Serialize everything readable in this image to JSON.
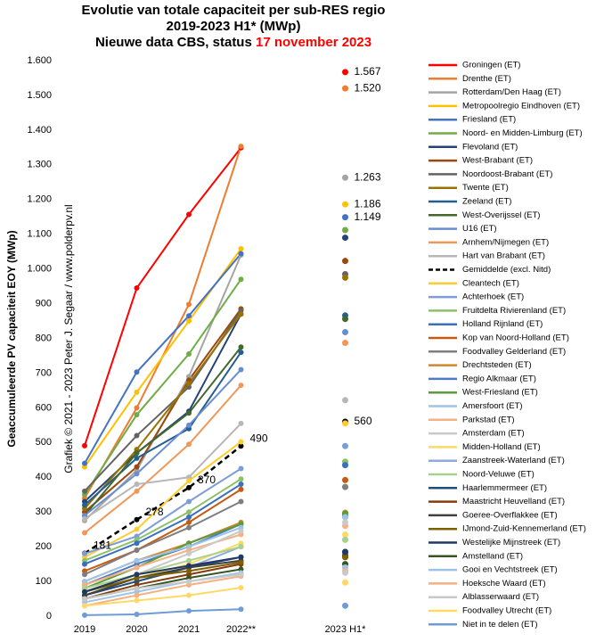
{
  "chart_data": {
    "type": "line",
    "title": "Evolutie van totale capaciteit  per sub-RES regio",
    "subtitle": "2019-2023 H1* (MWp)",
    "subtitle2": "Nieuwe data CBS, status ",
    "subtitle2_highlight": "17 november 2023",
    "highlight_color": "#ff0000",
    "y_label": "Geaccumuleerde PV capaciteit EOY (MWp)",
    "watermark": "Grafiek © 2021 - 2023 Peter J. Segaar / www.polderpv.nl",
    "categories": [
      "2019",
      "2020",
      "2021",
      "2022**",
      null,
      "2023 H1*"
    ],
    "ylim": [
      0,
      1600
    ],
    "yticks": [
      0,
      100,
      200,
      300,
      400,
      500,
      600,
      700,
      800,
      900,
      {
        "value": 1000,
        "label": "1.000"
      },
      {
        "value": 1100,
        "label": "1.100"
      },
      {
        "value": 1200,
        "label": "1.200"
      },
      {
        "value": 1300,
        "label": "1.300"
      },
      {
        "value": 1400,
        "label": "1.400"
      },
      {
        "value": 1500,
        "label": "1.500"
      },
      {
        "value": 1600,
        "label": "1.600"
      }
    ],
    "grid": false,
    "legend": "right",
    "series": [
      {
        "name": "Groningen (ET)",
        "color": "#ff0000",
        "values": [
          491,
          945,
          1157,
          1349,
          null,
          1567
        ],
        "value_labels": [
          null,
          null,
          null,
          null,
          null,
          "1.567"
        ]
      },
      {
        "name": "Drenthe (ET)",
        "color": "#ed7d31",
        "values": [
          340,
          600,
          898,
          1353,
          null,
          1520
        ],
        "value_labels": [
          null,
          null,
          null,
          null,
          null,
          "1.520"
        ]
      },
      {
        "name": "Rotterdam/Den Haag (ET)",
        "color": "#a5a5a5",
        "values": [
          275,
          420,
          690,
          1040,
          null,
          1263
        ],
        "value_labels": [
          null,
          null,
          null,
          null,
          null,
          "1.263"
        ]
      },
      {
        "name": "Metropoolregio Eindhoven (ET)",
        "color": "#ffc000",
        "values": [
          430,
          645,
          850,
          1058,
          null,
          1186
        ],
        "value_labels": [
          null,
          null,
          null,
          null,
          null,
          "1.186"
        ]
      },
      {
        "name": "Friesland (ET)",
        "color": "#4472c4",
        "values": [
          440,
          703,
          865,
          1044,
          null,
          1149
        ],
        "value_labels": [
          null,
          null,
          null,
          null,
          null,
          "1.149"
        ]
      },
      {
        "name": "Noord- en Midden-Limburg (ET)",
        "color": "#70ad47",
        "values": [
          350,
          580,
          755,
          970,
          null,
          1112
        ]
      },
      {
        "name": "Flevoland (ET)",
        "color": "#264478",
        "values": [
          330,
          470,
          590,
          870,
          null,
          1090
        ]
      },
      {
        "name": "West-Brabant (ET)",
        "color": "#9e480e",
        "values": [
          300,
          430,
          680,
          885,
          null,
          1023
        ]
      },
      {
        "name": "Noordoost-Brabant (ET)",
        "color": "#636363",
        "values": [
          360,
          520,
          660,
          880,
          null,
          985
        ]
      },
      {
        "name": "Twente (ET)",
        "color": "#997300",
        "values": [
          310,
          480,
          670,
          870,
          null,
          975
        ]
      },
      {
        "name": "Zeeland (ET)",
        "color": "#255e91",
        "values": [
          320,
          455,
          540,
          760,
          null,
          866
        ]
      },
      {
        "name": "West-Overijssel (ET)",
        "color": "#43682b",
        "values": [
          290,
          470,
          585,
          775,
          null,
          856
        ]
      },
      {
        "name": "U16 (ET)",
        "color": "#698ed0",
        "values": [
          290,
          410,
          550,
          710,
          null,
          818
        ]
      },
      {
        "name": "Arnhem/Nijmegen (ET)",
        "color": "#f1975a",
        "values": [
          240,
          360,
          495,
          665,
          null,
          787
        ]
      },
      {
        "name": "Hart van Brabant (ET)",
        "color": "#b7b7b7",
        "values": [
          280,
          380,
          400,
          555,
          null,
          622
        ]
      },
      {
        "name": "Gemiddelde (excl. Nitd)",
        "color": "#000000",
        "style": "dashed",
        "values": [
          181,
          278,
          370,
          490,
          null,
          560
        ],
        "value_labels": [
          "181",
          "278",
          "370",
          "490",
          null,
          "560"
        ]
      },
      {
        "name": "Cleantech (ET)",
        "color": "#ffcd33",
        "values": [
          170,
          250,
          390,
          502,
          null,
          555
        ]
      },
      {
        "name": "Achterhoek (ET)",
        "color": "#7c9dd8",
        "values": [
          180,
          230,
          330,
          425,
          null,
          490
        ]
      },
      {
        "name": "Fruitdelta Rivierenland (ET)",
        "color": "#8cc168",
        "values": [
          160,
          220,
          300,
          395,
          null,
          445
        ]
      },
      {
        "name": "Holland Rijnland (ET)",
        "color": "#3a6fc0",
        "values": [
          150,
          210,
          285,
          380,
          null,
          435
        ]
      },
      {
        "name": "Kop van Noord-Holland (ET)",
        "color": "#c55a11",
        "values": [
          130,
          190,
          270,
          365,
          null,
          392
        ]
      },
      {
        "name": "Foodvalley Gelderland (ET)",
        "color": "#7f7f7f",
        "values": [
          120,
          190,
          255,
          330,
          null,
          372
        ]
      },
      {
        "name": "Drechtsteden (ET)",
        "color": "#d4852a",
        "values": [
          100,
          160,
          210,
          270,
          null,
          298
        ]
      },
      {
        "name": "Regio Alkmaar (ET)",
        "color": "#4f7ac7",
        "values": [
          90,
          150,
          200,
          265,
          null,
          290
        ]
      },
      {
        "name": "West-Friesland (ET)",
        "color": "#5b9b3a",
        "values": [
          80,
          140,
          210,
          265,
          null,
          295
        ]
      },
      {
        "name": "Amersfoort (ET)",
        "color": "#9dc3e6",
        "values": [
          100,
          160,
          200,
          255,
          null,
          285
        ]
      },
      {
        "name": "Parkstad (ET)",
        "color": "#f4b183",
        "values": [
          90,
          140,
          190,
          235,
          null,
          260
        ]
      },
      {
        "name": "Amsterdam (ET)",
        "color": "#c9c9c9",
        "values": [
          70,
          120,
          180,
          245,
          null,
          270
        ]
      },
      {
        "name": "Midden-Holland (ET)",
        "color": "#ffd966",
        "values": [
          60,
          110,
          150,
          210,
          null,
          235
        ]
      },
      {
        "name": "Zaanstreek-Waterland (ET)",
        "color": "#8faadc",
        "values": [
          60,
          100,
          140,
          200,
          null,
          220
        ]
      },
      {
        "name": "Noord-Veluwe (ET)",
        "color": "#a9d18e",
        "values": [
          80,
          120,
          160,
          200,
          null,
          220
        ]
      },
      {
        "name": "Haarlemmermeer (ET)",
        "color": "#1f4e79",
        "values": [
          60,
          100,
          140,
          170,
          null,
          185
        ]
      },
      {
        "name": "Maastricht Heuvelland (ET)",
        "color": "#843c0c",
        "values": [
          50,
          90,
          120,
          150,
          null,
          170
        ]
      },
      {
        "name": "Goeree-Overflakkee (ET)",
        "color": "#404040",
        "values": [
          60,
          110,
          140,
          160,
          null,
          175
        ]
      },
      {
        "name": "IJmond-Zuid-Kennemerland (ET)",
        "color": "#7f6000",
        "values": [
          70,
          110,
          130,
          155,
          null,
          170
        ]
      },
      {
        "name": "Westelijke Mijnstreek (ET)",
        "color": "#203864",
        "values": [
          70,
          120,
          145,
          170,
          null,
          185
        ]
      },
      {
        "name": "Amstelland (ET)",
        "color": "#375623",
        "values": [
          50,
          80,
          110,
          135,
          null,
          150
        ]
      },
      {
        "name": "Gooi en Vechtstreek (ET)",
        "color": "#9dc3e6",
        "values": [
          40,
          70,
          100,
          125,
          null,
          140
        ]
      },
      {
        "name": "Hoeksche Waard (ET)",
        "color": "#f4b183",
        "values": [
          30,
          60,
          90,
          115,
          null,
          130
        ]
      },
      {
        "name": "Alblasserwaard (ET)",
        "color": "#c9c9c9",
        "values": [
          50,
          80,
          100,
          120,
          null,
          125
        ]
      },
      {
        "name": "Foodvalley Utrecht (ET)",
        "color": "#ffd966",
        "values": [
          30,
          45,
          60,
          82,
          null,
          97
        ]
      },
      {
        "name": "Niet in te delen (ET)",
        "color": "#6f9bd6",
        "values": [
          3,
          5,
          15,
          20,
          null,
          30
        ]
      }
    ]
  }
}
